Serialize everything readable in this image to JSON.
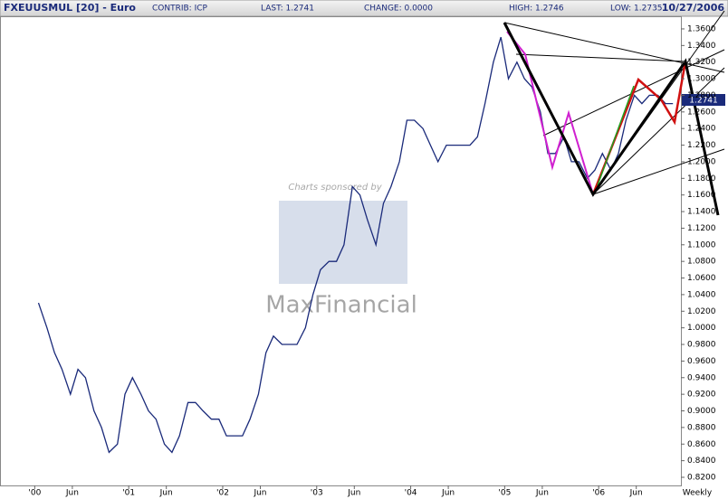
{
  "chart_data": {
    "type": "line",
    "header": {
      "symbol": "FXEUUSMUL [20] - Euro",
      "contrib": "CONTRIB: ICP",
      "last": "LAST: 1.2741",
      "change": "CHANGE: 0.0000",
      "high": "HIGH: 1.2746",
      "low": "LOW: 1.2735",
      "date": "10/27/2006"
    },
    "last_marker_label": "1.2741",
    "period_label": "Weekly",
    "watermark": {
      "sponsor": "Charts sponsored by",
      "brand": "MaxFinancial"
    },
    "color": "#1a2a7a",
    "x": [
      2000.04,
      2000.13,
      2000.21,
      2000.29,
      2000.38,
      2000.46,
      2000.54,
      2000.63,
      2000.71,
      2000.79,
      2000.88,
      2000.96,
      2001.04,
      2001.13,
      2001.21,
      2001.29,
      2001.38,
      2001.46,
      2001.54,
      2001.63,
      2001.71,
      2001.79,
      2001.88,
      2001.96,
      2002.04,
      2002.13,
      2002.21,
      2002.29,
      2002.38,
      2002.46,
      2002.54,
      2002.63,
      2002.71,
      2002.79,
      2002.88,
      2002.96,
      2003.04,
      2003.13,
      2003.21,
      2003.29,
      2003.38,
      2003.46,
      2003.54,
      2003.63,
      2003.71,
      2003.79,
      2003.88,
      2003.96,
      2004.04,
      2004.13,
      2004.21,
      2004.29,
      2004.38,
      2004.46,
      2004.54,
      2004.63,
      2004.71,
      2004.79,
      2004.88,
      2004.96,
      2005.04,
      2005.13,
      2005.21,
      2005.29,
      2005.38,
      2005.46,
      2005.54,
      2005.63,
      2005.71,
      2005.79,
      2005.88,
      2005.96,
      2006.04,
      2006.13,
      2006.21,
      2006.29,
      2006.38,
      2006.46,
      2006.54,
      2006.63,
      2006.71,
      2006.79
    ],
    "values": [
      1.03,
      1.0,
      0.97,
      0.95,
      0.92,
      0.95,
      0.94,
      0.9,
      0.88,
      0.85,
      0.86,
      0.92,
      0.94,
      0.92,
      0.9,
      0.89,
      0.86,
      0.85,
      0.87,
      0.91,
      0.91,
      0.9,
      0.89,
      0.89,
      0.87,
      0.87,
      0.87,
      0.89,
      0.92,
      0.97,
      0.99,
      0.98,
      0.98,
      0.98,
      1.0,
      1.04,
      1.07,
      1.08,
      1.08,
      1.1,
      1.17,
      1.16,
      1.13,
      1.1,
      1.15,
      1.17,
      1.2,
      1.25,
      1.25,
      1.24,
      1.22,
      1.2,
      1.22,
      1.22,
      1.22,
      1.22,
      1.23,
      1.27,
      1.32,
      1.35,
      1.3,
      1.32,
      1.3,
      1.29,
      1.26,
      1.21,
      1.21,
      1.23,
      1.2,
      1.2,
      1.18,
      1.19,
      1.21,
      1.19,
      1.21,
      1.25,
      1.28,
      1.27,
      1.28,
      1.28,
      1.27,
      1.27
    ],
    "xlim": [
      1999.64,
      2006.875
    ],
    "xticks": [
      {
        "value": 2000,
        "label": "'00"
      },
      {
        "value": 2000.4,
        "label": "Jun"
      },
      {
        "value": 2001,
        "label": "'01"
      },
      {
        "value": 2001.4,
        "label": "Jun"
      },
      {
        "value": 2002,
        "label": "'02"
      },
      {
        "value": 2002.4,
        "label": "Jun"
      },
      {
        "value": 2003,
        "label": "'03"
      },
      {
        "value": 2003.4,
        "label": "Jun"
      },
      {
        "value": 2004,
        "label": "'04"
      },
      {
        "value": 2004.4,
        "label": "Jun"
      },
      {
        "value": 2005,
        "label": "'05"
      },
      {
        "value": 2005.4,
        "label": "Jun"
      },
      {
        "value": 2006,
        "label": "'06"
      },
      {
        "value": 2006.4,
        "label": "Jun"
      }
    ],
    "ylim": [
      0.8102,
      1.3752
    ],
    "yticks": [
      {
        "value": 1.36,
        "label": "1.3600"
      },
      {
        "value": 1.34,
        "label": "1.3400"
      },
      {
        "value": 1.32,
        "label": "1.3200"
      },
      {
        "value": 1.3,
        "label": "1.3000"
      },
      {
        "value": 1.28,
        "label": "1.2800"
      },
      {
        "value": 1.26,
        "label": "1.2600"
      },
      {
        "value": 1.24,
        "label": "1.2400"
      },
      {
        "value": 1.22,
        "label": "1.2200"
      },
      {
        "value": 1.2,
        "label": "1.2000"
      },
      {
        "value": 1.18,
        "label": "1.1800"
      },
      {
        "value": 1.16,
        "label": "1.1600"
      },
      {
        "value": 1.14,
        "label": "1.1400"
      },
      {
        "value": 1.12,
        "label": "1.1200"
      },
      {
        "value": 1.1,
        "label": "1.1000"
      },
      {
        "value": 1.08,
        "label": "1.0800"
      },
      {
        "value": 1.06,
        "label": "1.0600"
      },
      {
        "value": 1.04,
        "label": "1.0400"
      },
      {
        "value": 1.02,
        "label": "1.0200"
      },
      {
        "value": 1.0,
        "label": "1.0000"
      },
      {
        "value": 0.98,
        "label": "0.9800"
      },
      {
        "value": 0.96,
        "label": "0.9600"
      },
      {
        "value": 0.94,
        "label": "0.9400"
      },
      {
        "value": 0.92,
        "label": "0.9200"
      },
      {
        "value": 0.9,
        "label": "0.9000"
      },
      {
        "value": 0.88,
        "label": "0.8800"
      },
      {
        "value": 0.86,
        "label": "0.8600"
      },
      {
        "value": 0.84,
        "label": "0.8400"
      },
      {
        "value": 0.82,
        "label": "0.8200"
      }
    ]
  }
}
